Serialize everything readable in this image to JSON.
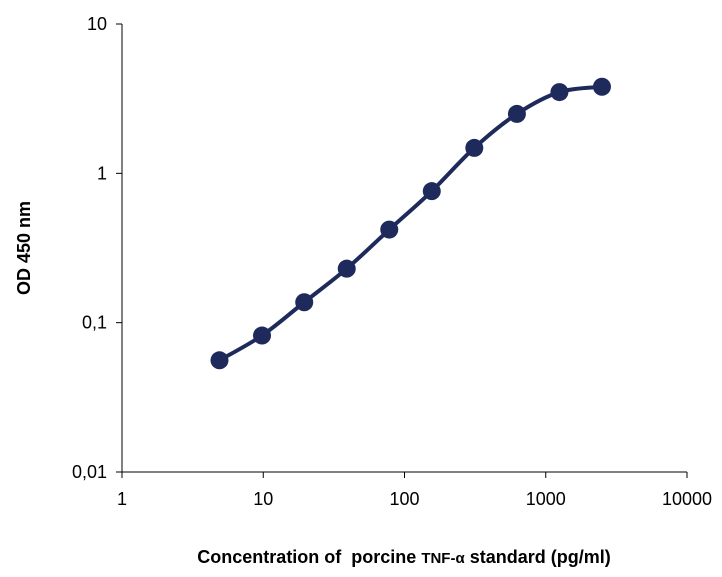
{
  "chart_data": {
    "type": "line",
    "title": "",
    "xlabel_parts": [
      "Concentration of  porcine ",
      "TNF-α",
      " standard (pg/ml)"
    ],
    "ylabel": "OD 450 nm",
    "x_scale": "log",
    "y_scale": "log",
    "xlim": [
      1,
      10000
    ],
    "ylim": [
      0.01,
      10
    ],
    "x_ticks": [
      1,
      10,
      100,
      1000,
      10000
    ],
    "x_tick_labels": [
      "1",
      "10",
      "100",
      "1000",
      "10000"
    ],
    "y_ticks": [
      0.01,
      0.1,
      1,
      10
    ],
    "y_tick_labels": [
      "0,01",
      "0,1",
      "1",
      "10"
    ],
    "grid": false,
    "legend": "none",
    "series": [
      {
        "color": "#1f2a5c",
        "x": [
          4.9,
          9.8,
          19.5,
          39,
          78,
          156,
          312,
          625,
          1250,
          2500
        ],
        "y": [
          0.056,
          0.082,
          0.137,
          0.23,
          0.42,
          0.76,
          1.48,
          2.5,
          3.5,
          3.8
        ]
      }
    ]
  }
}
